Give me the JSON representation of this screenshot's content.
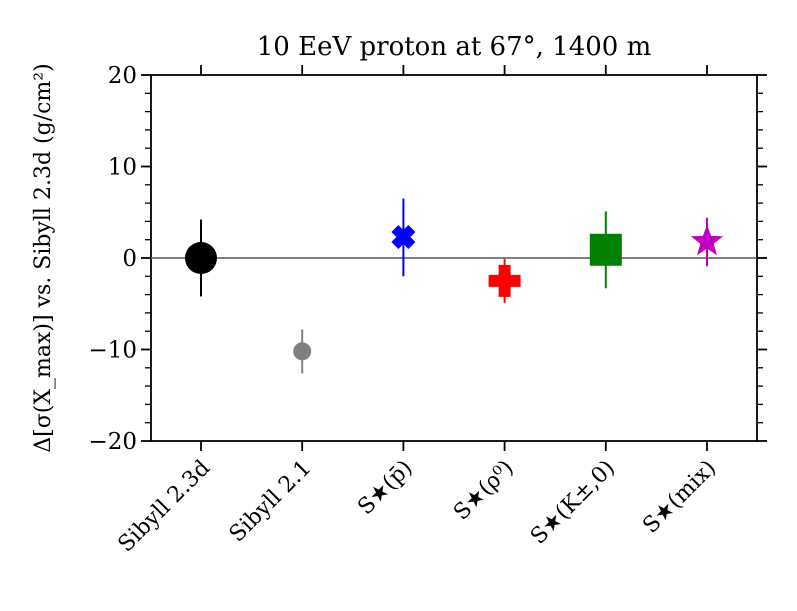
{
  "chart_data": {
    "type": "scatter",
    "title": "10 EeV proton at 67°, 1400 m",
    "xlabel": "",
    "ylabel": "Δ[σ(X_max)] vs. Sibyll 2.3d (g/cm²)",
    "ylim": [
      -20,
      20
    ],
    "yticks": [
      -20,
      -10,
      0,
      10,
      20
    ],
    "ytick_labels": [
      "−20",
      "−10",
      "0",
      "10",
      "20"
    ],
    "grid": false,
    "reference_line": 0,
    "categories": [
      "Sibyll 2.3d",
      "Sibyll 2.1",
      "S★(p̄)",
      "S★(ρ⁰)",
      "S★(K±,0)",
      "S★(mix)"
    ],
    "points": [
      {
        "label": "Sibyll 2.3d",
        "value": 0.0,
        "err_low": 4.2,
        "err_high": 4.2,
        "marker": "circle",
        "color": "#000000"
      },
      {
        "label": "Sibyll 2.1",
        "value": -10.2,
        "err_low": 2.4,
        "err_high": 2.4,
        "marker": "small-circle",
        "color": "#808080"
      },
      {
        "label": "S★(p̄)",
        "value": 2.3,
        "err_low": 4.3,
        "err_high": 4.2,
        "marker": "x",
        "color": "#0000ff"
      },
      {
        "label": "S★(ρ⁰)",
        "value": -2.5,
        "err_low": 2.4,
        "err_high": 2.4,
        "marker": "plus",
        "color": "#ff0000"
      },
      {
        "label": "S★(K±,0)",
        "value": 0.9,
        "err_low": 4.2,
        "err_high": 4.2,
        "marker": "square",
        "color": "#008000"
      },
      {
        "label": "S★(mix)",
        "value": 1.8,
        "err_low": 2.7,
        "err_high": 2.6,
        "marker": "star",
        "color": "#bf00bf"
      }
    ]
  }
}
